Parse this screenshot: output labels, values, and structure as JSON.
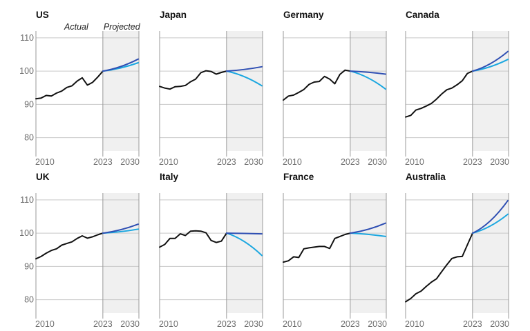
{
  "chart_data": {
    "type": "line",
    "x_ticks": [
      "2010",
      "2023",
      "2030"
    ],
    "y_ticks": [
      "80",
      "90",
      "100",
      "110"
    ],
    "ylim": [
      76,
      111
    ],
    "xlim": [
      2010,
      2030
    ],
    "actual_label": "Actual",
    "projected_label": "Projected",
    "colors": {
      "actual": "#111111",
      "scenario_high": "#2f4fb3",
      "scenario_low": "#1ba7e0",
      "projection_shade": "#f0f0f0",
      "grid": "#c8c8c8"
    },
    "panels": [
      {
        "title": "US",
        "actual": {
          "x": [
            2010,
            2011,
            2012,
            2013,
            2014,
            2015,
            2016,
            2017,
            2018,
            2019,
            2020,
            2021,
            2022,
            2023
          ],
          "y": [
            91.7,
            91.9,
            92.7,
            92.5,
            93.4,
            94.0,
            95.1,
            95.6,
            97.0,
            98.0,
            95.8,
            96.6,
            98.2,
            100
          ]
        },
        "scenario_high": {
          "x": [
            2023,
            2030
          ],
          "y": [
            100,
            103.6
          ]
        },
        "scenario_low": {
          "x": [
            2023,
            2030
          ],
          "y": [
            100,
            102.5
          ]
        }
      },
      {
        "title": "Japan",
        "actual": {
          "x": [
            2010,
            2011,
            2012,
            2013,
            2014,
            2015,
            2016,
            2017,
            2018,
            2019,
            2020,
            2021,
            2022,
            2023
          ],
          "y": [
            95.4,
            94.9,
            94.6,
            95.3,
            95.4,
            95.7,
            96.8,
            97.6,
            99.5,
            100.1,
            99.9,
            99.1,
            99.6,
            100
          ]
        },
        "scenario_high": {
          "x": [
            2023,
            2030
          ],
          "y": [
            100,
            101.3
          ]
        },
        "scenario_low": {
          "x": [
            2023,
            2030
          ],
          "y": [
            100,
            95.6
          ]
        }
      },
      {
        "title": "Germany",
        "actual": {
          "x": [
            2010,
            2011,
            2012,
            2013,
            2014,
            2015,
            2016,
            2017,
            2018,
            2019,
            2020,
            2021,
            2022,
            2023
          ],
          "y": [
            91.3,
            92.5,
            92.8,
            93.6,
            94.5,
            96.0,
            96.7,
            96.9,
            98.4,
            97.6,
            96.2,
            99.0,
            100.3,
            100
          ]
        },
        "scenario_high": {
          "x": [
            2023,
            2030
          ],
          "y": [
            100,
            99.1
          ]
        },
        "scenario_low": {
          "x": [
            2023,
            2030
          ],
          "y": [
            100,
            94.6
          ]
        }
      },
      {
        "title": "Canada",
        "actual": {
          "x": [
            2010,
            2011,
            2012,
            2013,
            2014,
            2015,
            2016,
            2017,
            2018,
            2019,
            2020,
            2021,
            2022,
            2023
          ],
          "y": [
            86.2,
            86.7,
            88.3,
            88.8,
            89.5,
            90.3,
            91.6,
            93.1,
            94.4,
            94.9,
            95.9,
            97.1,
            99.3,
            100
          ]
        },
        "scenario_high": {
          "x": [
            2023,
            2030
          ],
          "y": [
            100,
            105.9
          ]
        },
        "scenario_low": {
          "x": [
            2023,
            2030
          ],
          "y": [
            100,
            103.5
          ]
        }
      },
      {
        "title": "UK",
        "actual": {
          "x": [
            2010,
            2011,
            2012,
            2013,
            2014,
            2015,
            2016,
            2017,
            2018,
            2019,
            2020,
            2021,
            2022,
            2023
          ],
          "y": [
            92.3,
            93.0,
            94.0,
            94.8,
            95.3,
            96.4,
            96.9,
            97.4,
            98.4,
            99.2,
            98.5,
            98.9,
            99.5,
            100
          ]
        },
        "scenario_high": {
          "x": [
            2023,
            2030
          ],
          "y": [
            100,
            102.7
          ]
        },
        "scenario_low": {
          "x": [
            2023,
            2030
          ],
          "y": [
            100,
            101.2
          ]
        }
      },
      {
        "title": "Italy",
        "actual": {
          "x": [
            2010,
            2011,
            2012,
            2013,
            2014,
            2015,
            2016,
            2017,
            2018,
            2019,
            2020,
            2021,
            2022,
            2023
          ],
          "y": [
            95.8,
            96.6,
            98.4,
            98.4,
            99.8,
            99.3,
            100.6,
            100.7,
            100.6,
            100.1,
            97.8,
            97.2,
            97.6,
            100
          ]
        },
        "scenario_high": {
          "x": [
            2023,
            2030
          ],
          "y": [
            100,
            99.8
          ]
        },
        "scenario_low": {
          "x": [
            2023,
            2030
          ],
          "y": [
            100,
            93.3
          ]
        }
      },
      {
        "title": "France",
        "actual": {
          "x": [
            2010,
            2011,
            2012,
            2013,
            2014,
            2015,
            2016,
            2017,
            2018,
            2019,
            2020,
            2021,
            2022,
            2023
          ],
          "y": [
            91.3,
            91.7,
            92.9,
            92.7,
            95.3,
            95.6,
            95.8,
            96.0,
            96.0,
            95.4,
            98.4,
            99.0,
            99.6,
            100
          ]
        },
        "scenario_high": {
          "x": [
            2023,
            2030
          ],
          "y": [
            100,
            103.0
          ]
        },
        "scenario_low": {
          "x": [
            2023,
            2030
          ],
          "y": [
            100,
            99.0
          ]
        }
      },
      {
        "title": "Australia",
        "actual": {
          "x": [
            2010,
            2011,
            2012,
            2013,
            2014,
            2015,
            2016,
            2017,
            2018,
            2019,
            2020,
            2021,
            2022,
            2023
          ],
          "y": [
            79.4,
            80.4,
            81.8,
            82.6,
            84.0,
            85.3,
            86.3,
            88.4,
            90.5,
            92.4,
            92.9,
            93.0,
            96.5,
            100
          ]
        },
        "scenario_high": {
          "x": [
            2023,
            2030
          ],
          "y": [
            100,
            109.8
          ]
        },
        "scenario_low": {
          "x": [
            2023,
            2030
          ],
          "y": [
            100,
            105.7
          ]
        }
      }
    ]
  }
}
